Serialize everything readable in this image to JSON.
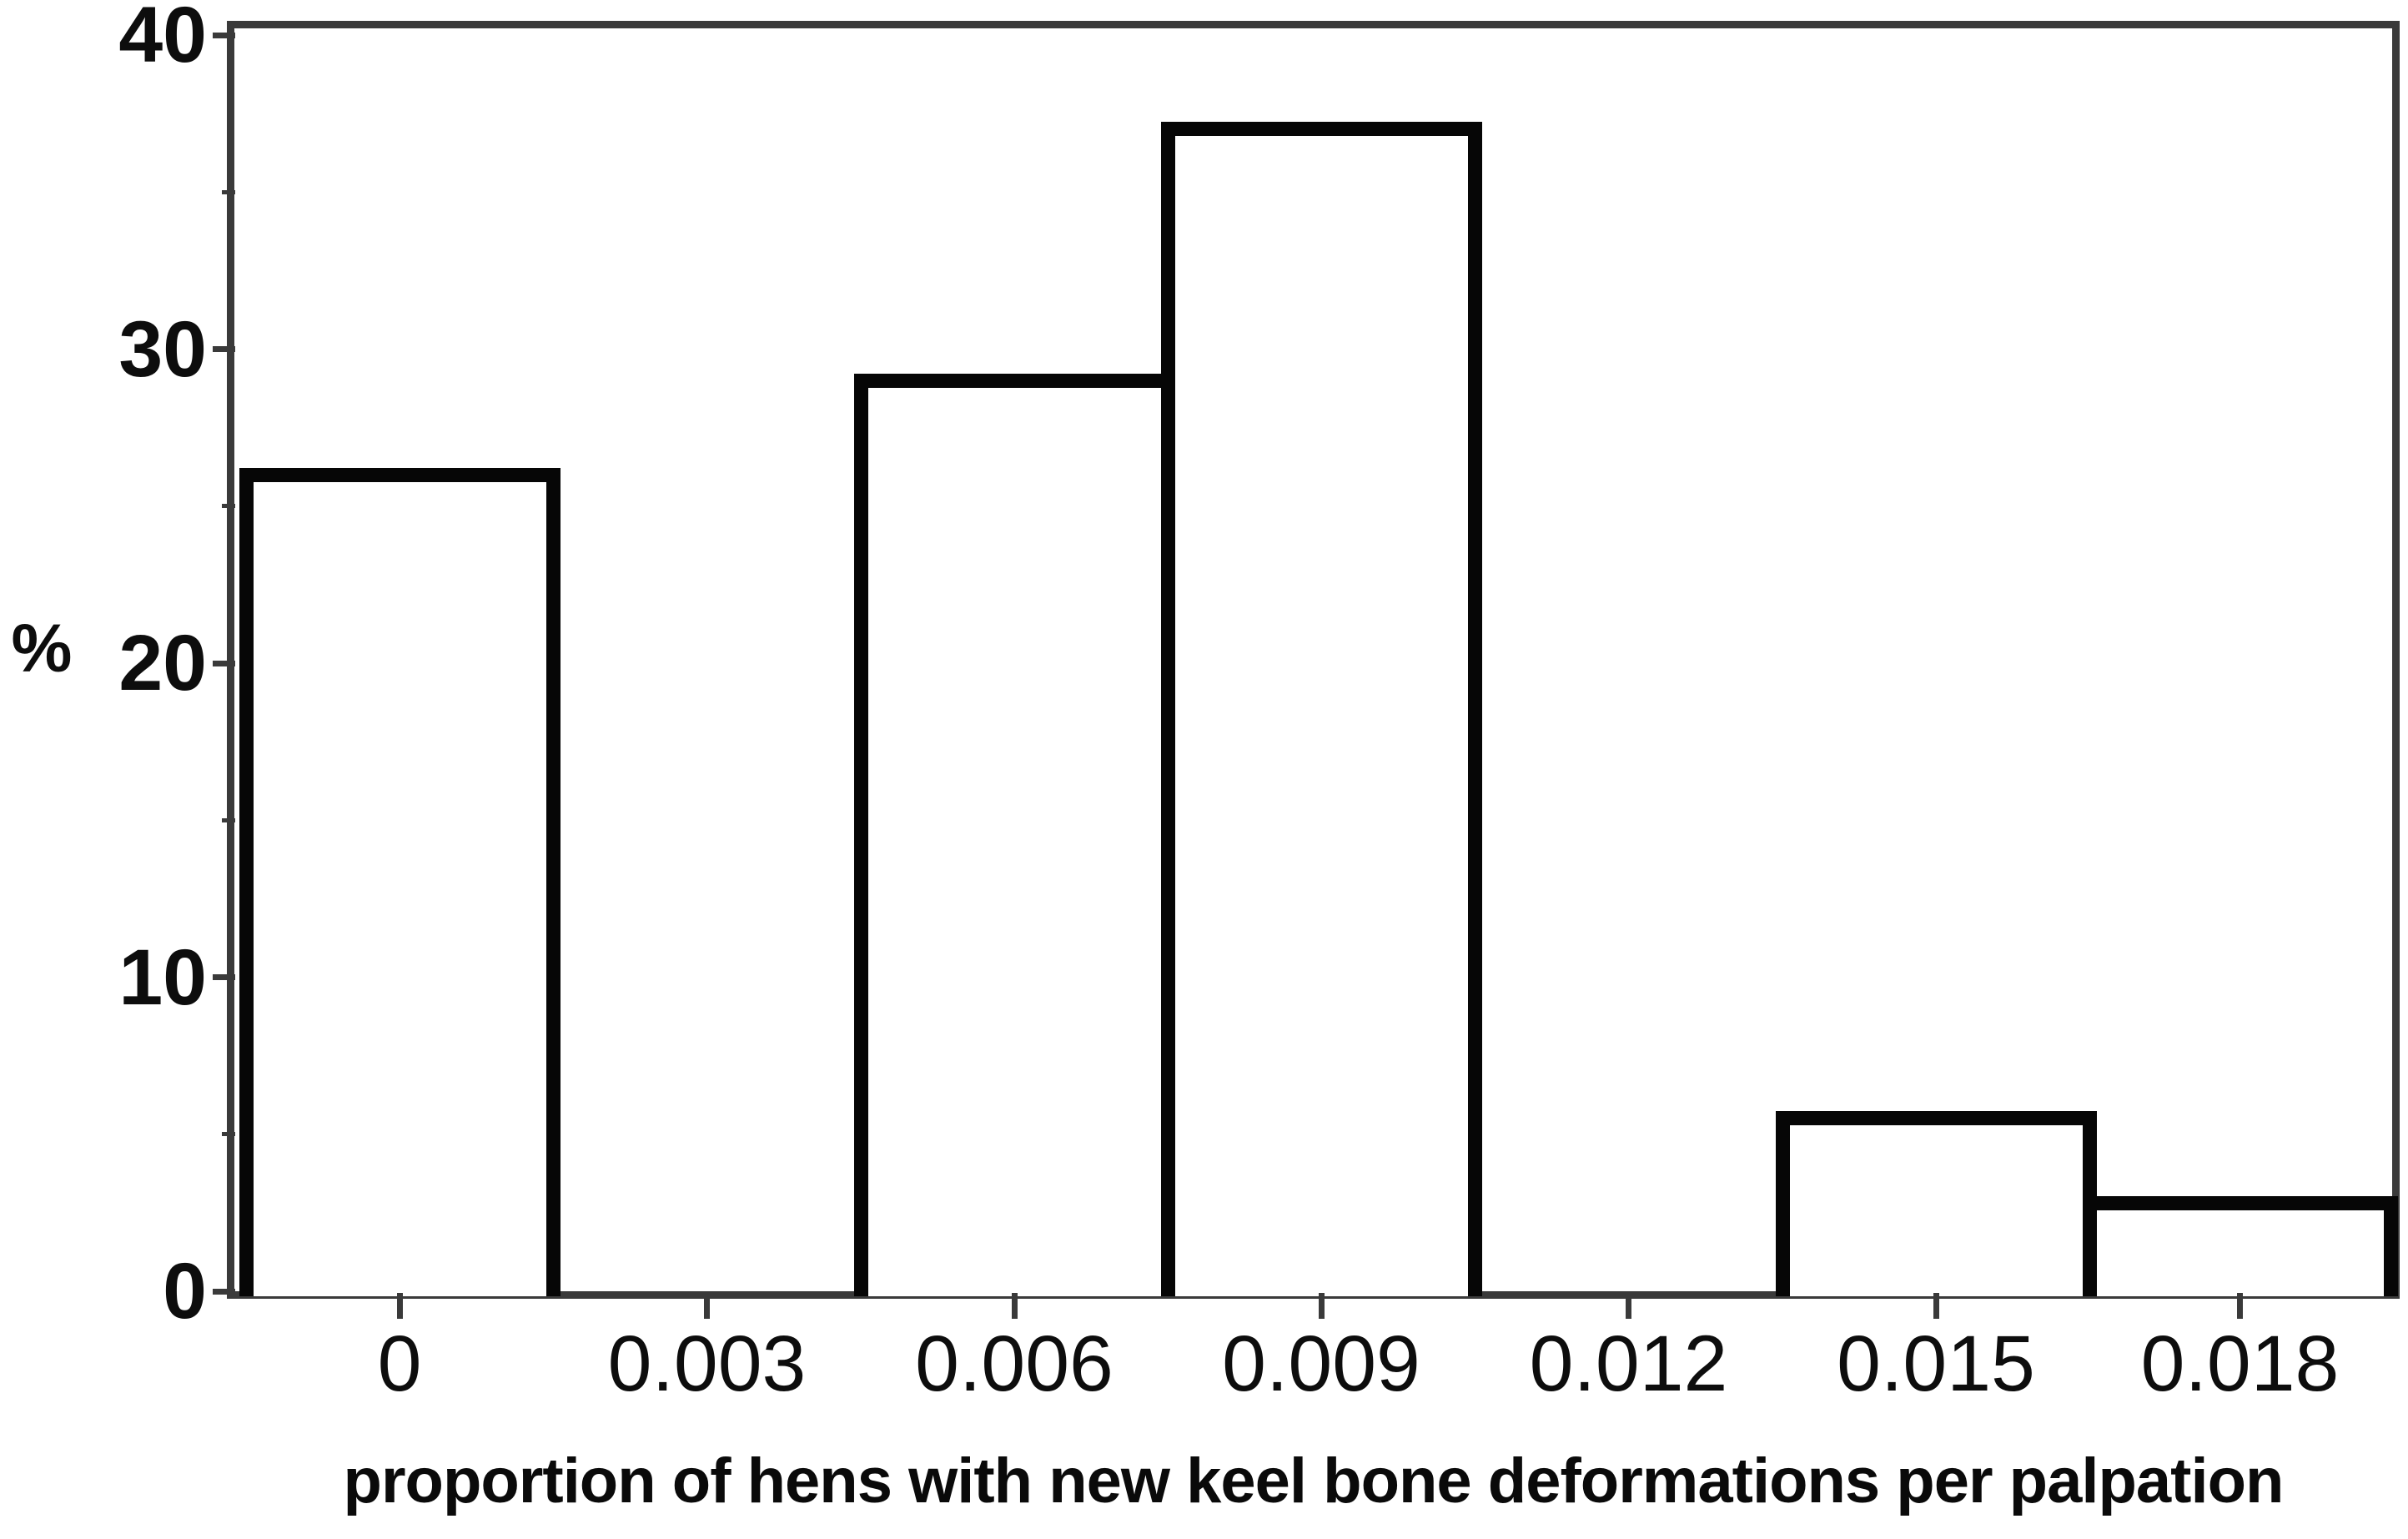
{
  "figure": {
    "background_color": "#ffffff"
  },
  "chart_data": {
    "type": "bar",
    "subtype": "histogram",
    "title": "",
    "xlabel": "proportion of hens with new keel bone deformations per palpation",
    "ylabel": "%",
    "categories": [
      "0",
      "0.003",
      "0.006",
      "0.009",
      "0.012",
      "0.015",
      "0.018"
    ],
    "values": [
      26,
      0,
      29,
      37,
      0,
      5.5,
      2.8
    ],
    "ylim": [
      0,
      40
    ],
    "yticks_major": [
      0,
      10,
      20,
      30,
      40
    ],
    "yticks_minor": [
      5,
      15,
      25,
      35
    ],
    "bin_width": 0.003,
    "grid": "off",
    "legend": "none",
    "bar_fill_color": "#ffffff",
    "bar_stroke_color": "#060606",
    "axis_color": "#3a3a3a",
    "text_color": "#0d0d0d"
  }
}
